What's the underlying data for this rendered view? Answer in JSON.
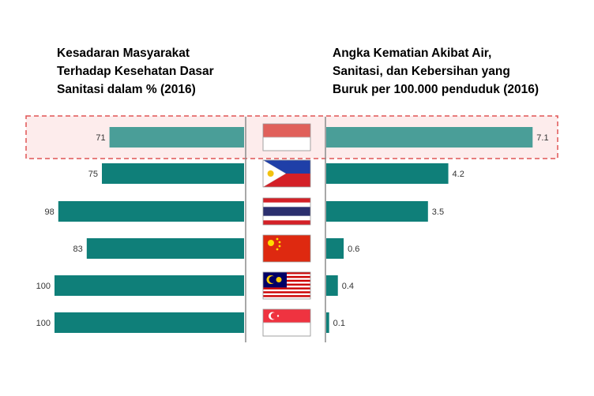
{
  "headings": {
    "left": [
      "Kesadaran Masyarakat",
      "Terhadap Kesehatan Dasar",
      "Sanitasi dalam % (2016)"
    ],
    "right": [
      "Angka Kematian Akibat Air,",
      "Sanitasi, dan Kebersihan yang",
      "Buruk per 100.000 penduduk (2016)"
    ]
  },
  "colors": {
    "bar": "#0f7f79",
    "bar_highlight": "#4a9e98",
    "highlight_border": "#e05555",
    "highlight_fill": "#fdecec",
    "label_text": "#333333"
  },
  "chart_data": {
    "type": "bar",
    "layout": "butterfly",
    "categories": [
      "flag-indonesia",
      "flag-philippines",
      "flag-thailand",
      "flag-china",
      "flag-malaysia",
      "flag-singapore"
    ],
    "series": [
      {
        "name": "Kesadaran Masyarakat Terhadap Kesehatan Dasar Sanitasi dalam % (2016)",
        "side": "left",
        "values": [
          71,
          75,
          98,
          83,
          100,
          100
        ],
        "labels": [
          "71",
          "75",
          "98",
          "83",
          "100",
          "100"
        ]
      },
      {
        "name": "Angka Kematian Akibat Air, Sanitasi, dan Kebersihan yang Buruk per 100.000 penduduk (2016)",
        "side": "right",
        "values": [
          7.1,
          4.2,
          3.5,
          0.6,
          0.4,
          0.1
        ],
        "labels": [
          "7.1",
          "4.2",
          "3.5",
          "0.6",
          "0.4",
          "0.1"
        ]
      }
    ],
    "highlighted_category_index": 0,
    "grid": false,
    "legend": "none"
  }
}
